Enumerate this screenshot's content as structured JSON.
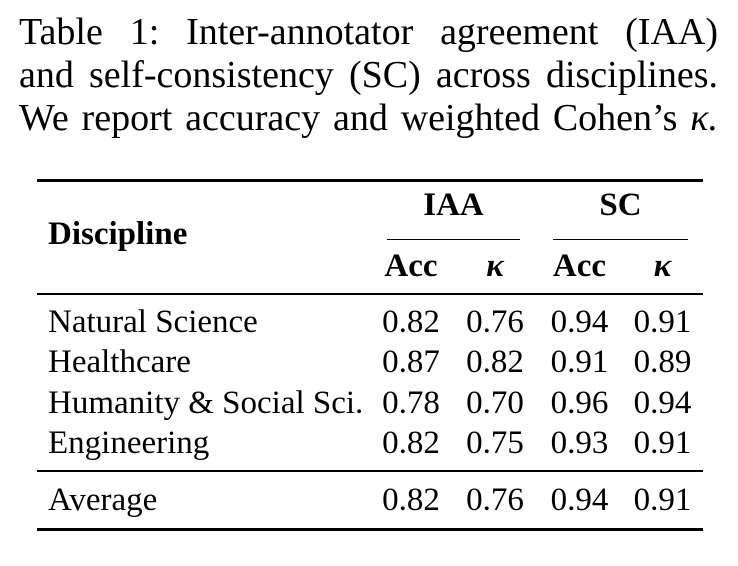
{
  "caption": {
    "line1": "Table 1: Inter-annotator agreement (IAA)",
    "line2": "and self-consistency (SC) across disciplines.",
    "line3_text": "We report accuracy and weighted Cohen’s",
    "line3_symbol": "κ."
  },
  "table": {
    "col1_header": "Discipline",
    "groups": [
      {
        "label": "IAA"
      },
      {
        "label": "SC"
      }
    ],
    "subheaders": [
      "Acc",
      "κ",
      "Acc",
      "κ"
    ],
    "rows": [
      {
        "label": "Natural Science",
        "values": [
          "0.82",
          "0.76",
          "0.94",
          "0.91"
        ]
      },
      {
        "label": "Healthcare",
        "values": [
          "0.87",
          "0.82",
          "0.91",
          "0.89"
        ]
      },
      {
        "label": "Humanity & Social Sci.",
        "values": [
          "0.78",
          "0.70",
          "0.96",
          "0.94"
        ]
      },
      {
        "label": "Engineering",
        "values": [
          "0.82",
          "0.75",
          "0.93",
          "0.91"
        ]
      }
    ],
    "average": {
      "label": "Average",
      "values": [
        "0.82",
        "0.76",
        "0.94",
        "0.91"
      ]
    }
  },
  "colors": {
    "text": "#000000",
    "background": "#ffffff",
    "rule": "#000000"
  }
}
